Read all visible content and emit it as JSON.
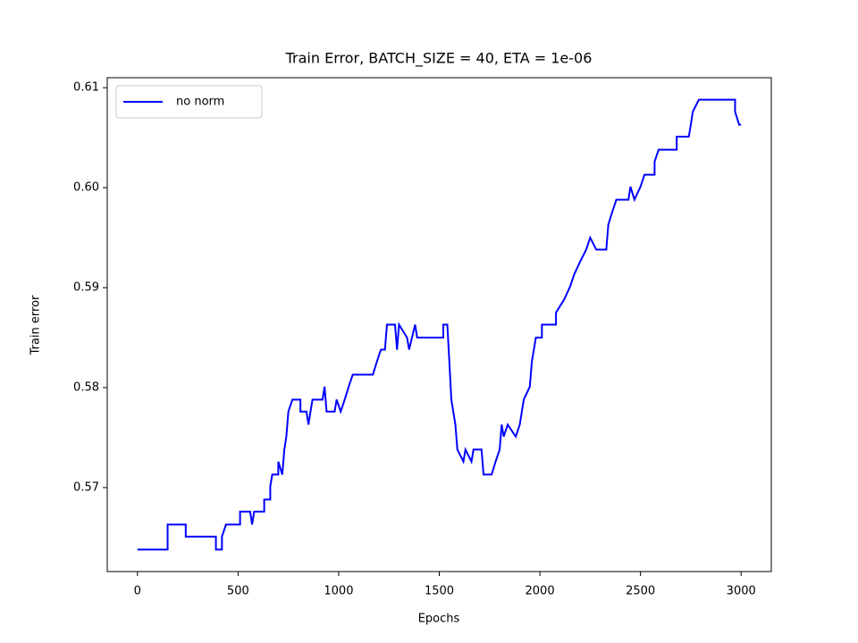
{
  "chart_data": {
    "type": "line",
    "title": "Train Error, BATCH_SIZE = 40, ETA = 1e-06",
    "x_label": "Epochs",
    "y_label": "Train error",
    "x": [
      0,
      150,
      150,
      240,
      240,
      390,
      390,
      420,
      420,
      440,
      510,
      510,
      560,
      570,
      580,
      630,
      630,
      660,
      660,
      670,
      700,
      700,
      720,
      730,
      740,
      750,
      770,
      810,
      810,
      840,
      850,
      860,
      870,
      920,
      930,
      940,
      980,
      990,
      1010,
      1030,
      1050,
      1070,
      1170,
      1190,
      1210,
      1230,
      1240,
      1280,
      1290,
      1300,
      1340,
      1350,
      1380,
      1390,
      1520,
      1520,
      1540,
      1550,
      1560,
      1580,
      1590,
      1620,
      1630,
      1660,
      1670,
      1710,
      1720,
      1760,
      1780,
      1800,
      1810,
      1820,
      1840,
      1880,
      1900,
      1920,
      1950,
      1960,
      1980,
      2010,
      2010,
      2080,
      2080,
      2120,
      2150,
      2170,
      2200,
      2230,
      2250,
      2280,
      2330,
      2340,
      2360,
      2380,
      2440,
      2450,
      2470,
      2500,
      2520,
      2570,
      2570,
      2590,
      2680,
      2680,
      2740,
      2750,
      2760,
      2790,
      2970,
      2970,
      2990,
      3000
    ],
    "series": [
      {
        "name": "no norm",
        "color": "#0000ff",
        "values": [
          0.5638,
          0.5638,
          0.5663,
          0.5663,
          0.5651,
          0.5651,
          0.5638,
          0.5638,
          0.5651,
          0.5663,
          0.5663,
          0.5676,
          0.5676,
          0.5663,
          0.5676,
          0.5676,
          0.5688,
          0.5688,
          0.5701,
          0.5713,
          0.5713,
          0.5726,
          0.5713,
          0.5738,
          0.5751,
          0.5776,
          0.5788,
          0.5788,
          0.5776,
          0.5776,
          0.5763,
          0.5776,
          0.5788,
          0.5788,
          0.5801,
          0.5776,
          0.5776,
          0.5788,
          0.5776,
          0.5788,
          0.5801,
          0.5813,
          0.5813,
          0.5826,
          0.5838,
          0.5838,
          0.5863,
          0.5863,
          0.5838,
          0.5863,
          0.585,
          0.5838,
          0.5863,
          0.585,
          0.585,
          0.5863,
          0.5863,
          0.5826,
          0.5788,
          0.5763,
          0.5738,
          0.5726,
          0.5738,
          0.5726,
          0.5738,
          0.5738,
          0.5713,
          0.5713,
          0.5726,
          0.5738,
          0.5763,
          0.5751,
          0.5763,
          0.5751,
          0.5763,
          0.5788,
          0.5801,
          0.5826,
          0.585,
          0.585,
          0.5863,
          0.5863,
          0.5875,
          0.5888,
          0.5901,
          0.5913,
          0.5926,
          0.5938,
          0.595,
          0.5938,
          0.5938,
          0.5963,
          0.5976,
          0.5988,
          0.5988,
          0.6001,
          0.5988,
          0.6001,
          0.6013,
          0.6013,
          0.6026,
          0.6038,
          0.6038,
          0.6051,
          0.6051,
          0.6063,
          0.6076,
          0.6088,
          0.6088,
          0.6076,
          0.6063,
          0.6063
        ]
      }
    ],
    "xlim": [
      -150,
      3150
    ],
    "ylim": [
      0.5616,
      0.611
    ],
    "xticks": [
      0,
      500,
      1000,
      1500,
      2000,
      2500,
      3000
    ],
    "yticks": [
      0.57,
      0.58,
      0.59,
      {
        "value": 0.6,
        "label": "0.60"
      },
      0.61
    ],
    "grid": false,
    "legend": "upper left"
  }
}
